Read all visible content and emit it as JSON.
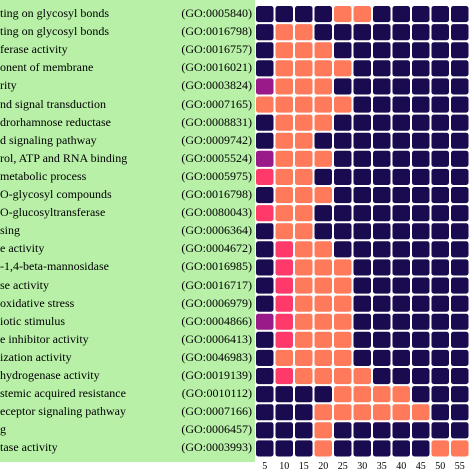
{
  "chart_data": {
    "type": "heatmap",
    "rows": [
      {
        "term": "ting on glycosyl bonds",
        "go": "(GO:0005840)"
      },
      {
        "term": "ting on glycosyl bonds",
        "go": "(GO:0016798)"
      },
      {
        "term": "ferase activity",
        "go": "(GO:0016757)"
      },
      {
        "term": "onent of membrane",
        "go": "(GO:0016021)"
      },
      {
        "term": "rity",
        "go": "(GO:0003824)"
      },
      {
        "term": "nd signal transduction",
        "go": "(GO:0007165)"
      },
      {
        "term": "drorhamnose reductase",
        "go": "(GO:0008831)"
      },
      {
        "term": "d signaling pathway",
        "go": "(GO:0009742)"
      },
      {
        "term": "rol, ATP and RNA binding",
        "go": "(GO:0005524)"
      },
      {
        "term": "metabolic process",
        "go": "(GO:0005975)"
      },
      {
        "term": "O-glycosyl compounds",
        "go": "(GO:0016798)"
      },
      {
        "term": "O-glucosyltransferase",
        "go": "(GO:0080043)"
      },
      {
        "term": "sing",
        "go": "(GO:0006364)"
      },
      {
        "term": "e activity",
        "go": "(GO:0004672)"
      },
      {
        "term": "-1,4-beta-mannosidase",
        "go": "(GO:0016985)"
      },
      {
        "term": "se activity",
        "go": "(GO:0016717)"
      },
      {
        "term": "oxidative stress",
        "go": "(GO:0006979)"
      },
      {
        "term": "iotic stimulus",
        "go": "(GO:0004866)"
      },
      {
        "term": "e inhibitor activity",
        "go": "(GO:0006413)"
      },
      {
        "term": "ization activity",
        "go": "(GO:0046983)"
      },
      {
        "term": "hydrogenase activity",
        "go": "(GO:0019139)"
      },
      {
        "term": "stemic acquired resistance",
        "go": "(GO:0010112)"
      },
      {
        "term": "eceptor signaling pathway",
        "go": "(GO:0007166)"
      },
      {
        "term": "g",
        "go": "(GO:0006457)"
      },
      {
        "term": "tase activity",
        "go": "(GO:0003993)"
      }
    ],
    "x_ticks": [
      "5",
      "10",
      "15",
      "20",
      "25",
      "30",
      "35",
      "40",
      "45",
      "50",
      "55"
    ],
    "n_columns": 11,
    "levels": [
      "none",
      "high",
      "medium",
      "top"
    ],
    "colors": {
      "none": "#1a0a50",
      "high": "#ff3a6a",
      "medium": "#ff7a5a",
      "top": "#9a1a8a",
      "cell_border": "#ffffff",
      "label_panel": "#b8f0a8"
    },
    "grid": [
      [
        0,
        0,
        0,
        0,
        2,
        2,
        0,
        0,
        0,
        0,
        0
      ],
      [
        0,
        2,
        2,
        0,
        0,
        0,
        0,
        0,
        0,
        0,
        0
      ],
      [
        0,
        2,
        2,
        2,
        0,
        0,
        0,
        0,
        0,
        0,
        0
      ],
      [
        0,
        2,
        2,
        2,
        2,
        0,
        0,
        0,
        0,
        0,
        0
      ],
      [
        3,
        2,
        2,
        2,
        0,
        0,
        0,
        0,
        0,
        0,
        0
      ],
      [
        2,
        2,
        2,
        2,
        2,
        0,
        0,
        0,
        0,
        0,
        0
      ],
      [
        0,
        2,
        2,
        2,
        0,
        0,
        0,
        0,
        0,
        0,
        0
      ],
      [
        0,
        2,
        2,
        0,
        0,
        0,
        0,
        0,
        0,
        0,
        0
      ],
      [
        3,
        2,
        2,
        2,
        0,
        0,
        0,
        0,
        0,
        0,
        0
      ],
      [
        1,
        2,
        2,
        0,
        0,
        0,
        0,
        0,
        0,
        0,
        0
      ],
      [
        0,
        2,
        2,
        2,
        0,
        0,
        0,
        0,
        0,
        0,
        0
      ],
      [
        1,
        2,
        2,
        0,
        0,
        0,
        0,
        0,
        0,
        0,
        0
      ],
      [
        0,
        2,
        2,
        0,
        0,
        0,
        0,
        0,
        0,
        0,
        0
      ],
      [
        0,
        1,
        2,
        2,
        0,
        0,
        0,
        0,
        0,
        0,
        0
      ],
      [
        0,
        1,
        2,
        2,
        2,
        0,
        0,
        0,
        0,
        0,
        0
      ],
      [
        0,
        1,
        2,
        2,
        2,
        0,
        0,
        0,
        0,
        0,
        0
      ],
      [
        0,
        1,
        2,
        2,
        2,
        0,
        0,
        0,
        0,
        0,
        0
      ],
      [
        3,
        1,
        2,
        2,
        2,
        0,
        0,
        0,
        0,
        0,
        0
      ],
      [
        0,
        1,
        2,
        2,
        2,
        0,
        0,
        0,
        0,
        0,
        0
      ],
      [
        0,
        2,
        2,
        2,
        2,
        0,
        0,
        0,
        0,
        0,
        0
      ],
      [
        0,
        1,
        2,
        2,
        2,
        2,
        0,
        0,
        0,
        0,
        0
      ],
      [
        0,
        0,
        0,
        0,
        2,
        2,
        2,
        2,
        0,
        0,
        0
      ],
      [
        0,
        0,
        0,
        2,
        2,
        2,
        2,
        2,
        2,
        0,
        0
      ],
      [
        0,
        0,
        0,
        2,
        0,
        0,
        0,
        0,
        0,
        0,
        0
      ],
      [
        0,
        0,
        0,
        2,
        0,
        0,
        0,
        0,
        0,
        2,
        2
      ]
    ],
    "title": "",
    "xlabel": "",
    "ylabel": "",
    "legend": "none",
    "grid_lines": false
  }
}
